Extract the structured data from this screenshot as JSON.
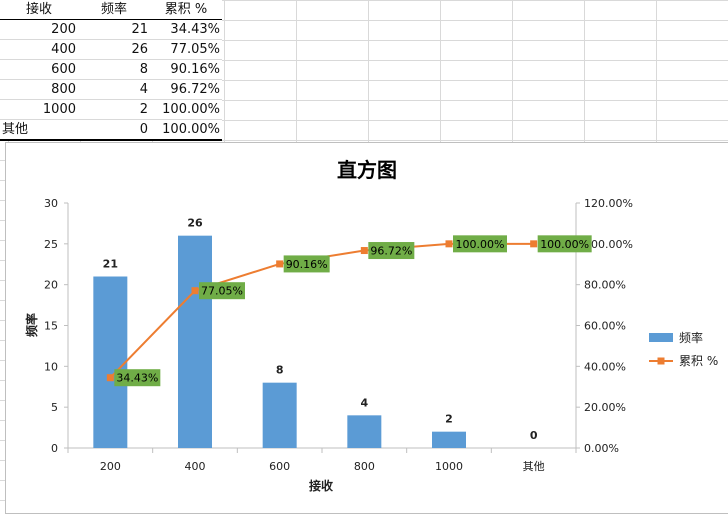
{
  "table": {
    "headers": [
      "接收",
      "频率",
      "累积 %"
    ],
    "rows": [
      [
        "200",
        "21",
        "34.43%"
      ],
      [
        "400",
        "26",
        "77.05%"
      ],
      [
        "600",
        "8",
        "90.16%"
      ],
      [
        "800",
        "4",
        "96.72%"
      ],
      [
        "1000",
        "2",
        "100.00%"
      ],
      [
        "其他",
        "0",
        "100.00%"
      ]
    ]
  },
  "chart_data": {
    "type": "bar",
    "title": "直方图",
    "xlabel": "接收",
    "ylabel": "频率",
    "categories": [
      "200",
      "400",
      "600",
      "800",
      "1000",
      "其他"
    ],
    "series": [
      {
        "name": "频率",
        "type": "bar",
        "axis": "left",
        "color": "#5B9BD5",
        "values": [
          21,
          26,
          8,
          4,
          2,
          0
        ],
        "labels": [
          "21",
          "26",
          "8",
          "4",
          "2",
          "0"
        ]
      },
      {
        "name": "累积 %",
        "type": "line",
        "axis": "right",
        "color": "#ED7D31",
        "values": [
          34.43,
          77.05,
          90.16,
          96.72,
          100,
          100
        ],
        "labels": [
          "34.43%",
          "77.05%",
          "90.16%",
          "96.72%",
          "100.00%",
          "100.00%"
        ]
      }
    ],
    "ylim": [
      0,
      30
    ],
    "yticks": [
      "0",
      "5",
      "10",
      "15",
      "20",
      "25",
      "30"
    ],
    "y2lim": [
      0,
      120
    ],
    "y2ticks": [
      "0.00%",
      "20.00%",
      "40.00%",
      "60.00%",
      "80.00%",
      "100.00%",
      "120.00%"
    ],
    "grid": false,
    "legend_position": "right",
    "point_label_fill": "#70AD47"
  }
}
